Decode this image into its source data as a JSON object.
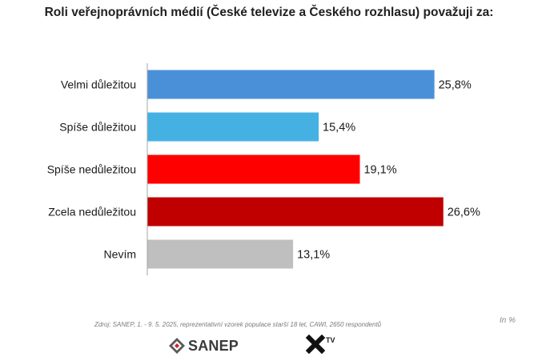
{
  "chart_data": {
    "type": "bar",
    "orientation": "horizontal",
    "title": "Roli veřejnoprávních médií (České televize a Českého rozhlasu) považuji za:",
    "categories": [
      "Velmi důležitou",
      "Spíše důležitou",
      "Spíše nedůležitou",
      "Zcela nedůležitou",
      "Nevím"
    ],
    "values": [
      25.8,
      15.4,
      19.1,
      26.6,
      13.1
    ],
    "value_labels": [
      "25,8%",
      "15,4%",
      "19,1%",
      "26,6%",
      "13,1%"
    ],
    "colors": [
      "#4a90d9",
      "#45b1e3",
      "#ff0000",
      "#c00000",
      "#bfbfbf"
    ],
    "xlim": [
      0,
      30
    ],
    "grid": false,
    "legend": "none",
    "unit_note": "In %"
  },
  "source": "Zdroj: SANEP, 1. - 9. 5. 2025, reprezentativní vzorek populace starší 18 let, CAWI, 2650 respondentů",
  "logos": {
    "sanep": "SANEP",
    "xtv": "TV"
  }
}
